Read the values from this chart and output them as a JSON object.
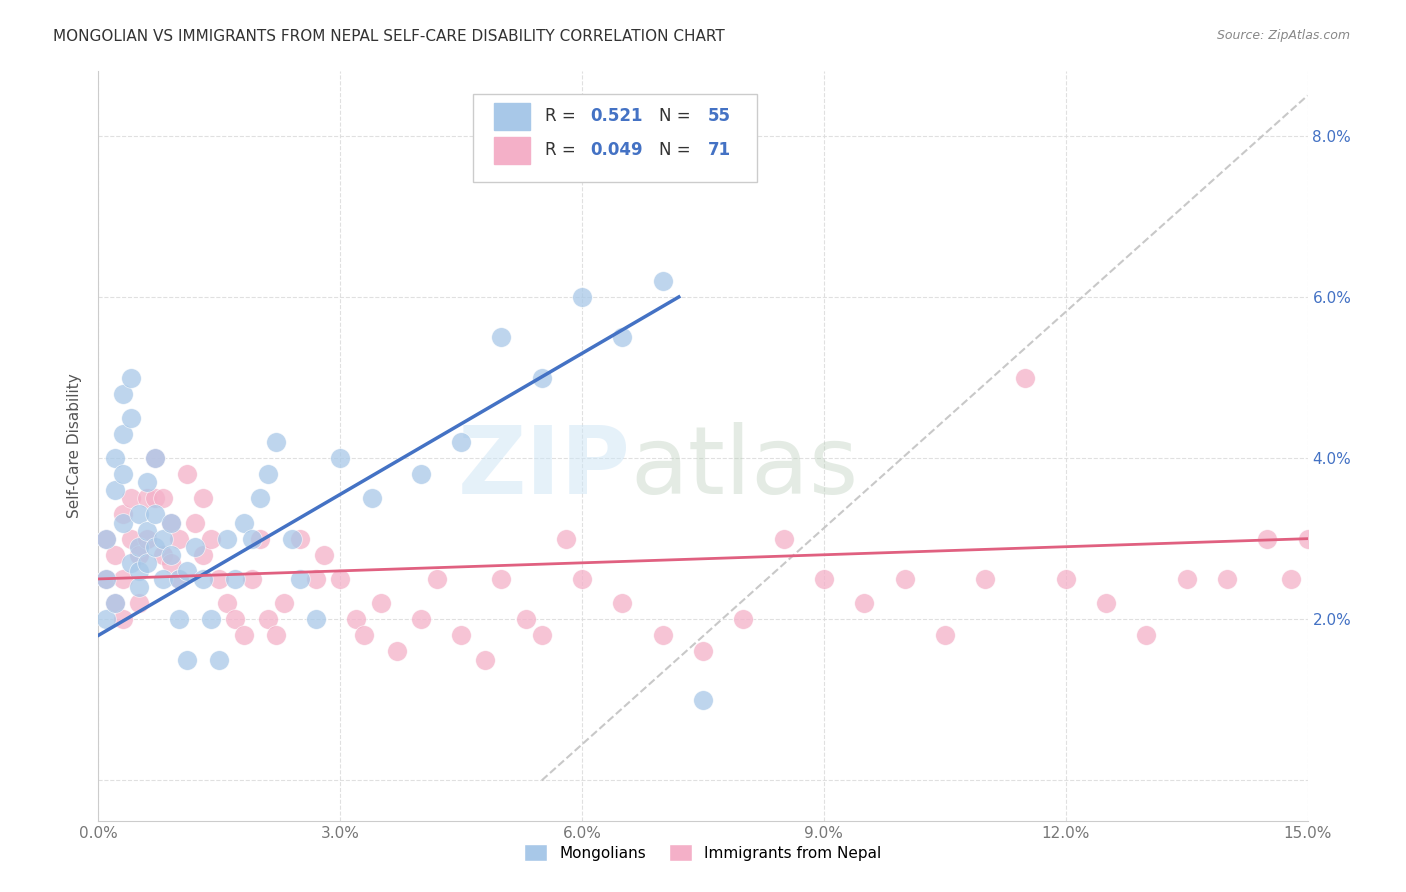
{
  "title": "MONGOLIAN VS IMMIGRANTS FROM NEPAL SELF-CARE DISABILITY CORRELATION CHART",
  "source": "Source: ZipAtlas.com",
  "ylabel": "Self-Care Disability",
  "xlim": [
    0.0,
    0.15
  ],
  "ylim": [
    -0.005,
    0.088
  ],
  "plot_ylim": [
    0.0,
    0.088
  ],
  "xticks": [
    0.0,
    0.03,
    0.06,
    0.09,
    0.12,
    0.15
  ],
  "yticks": [
    0.0,
    0.02,
    0.04,
    0.06,
    0.08
  ],
  "mongolian_R": 0.521,
  "mongolian_N": 55,
  "nepal_R": 0.049,
  "nepal_N": 71,
  "mongolian_color": "#a8c8e8",
  "nepal_color": "#f4b0c8",
  "mongolian_line_color": "#4472c4",
  "nepal_line_color": "#e06080",
  "background_color": "#ffffff",
  "grid_color": "#dddddd",
  "mongolian_x": [
    0.001,
    0.001,
    0.001,
    0.002,
    0.002,
    0.002,
    0.003,
    0.003,
    0.003,
    0.003,
    0.004,
    0.004,
    0.004,
    0.005,
    0.005,
    0.005,
    0.005,
    0.006,
    0.006,
    0.006,
    0.007,
    0.007,
    0.007,
    0.008,
    0.008,
    0.009,
    0.009,
    0.01,
    0.01,
    0.011,
    0.011,
    0.012,
    0.013,
    0.014,
    0.015,
    0.016,
    0.017,
    0.018,
    0.019,
    0.02,
    0.021,
    0.022,
    0.024,
    0.025,
    0.027,
    0.03,
    0.034,
    0.04,
    0.045,
    0.05,
    0.055,
    0.06,
    0.065,
    0.07,
    0.075
  ],
  "mongolian_y": [
    0.03,
    0.025,
    0.02,
    0.04,
    0.036,
    0.022,
    0.043,
    0.038,
    0.032,
    0.048,
    0.05,
    0.045,
    0.027,
    0.033,
    0.029,
    0.026,
    0.024,
    0.037,
    0.031,
    0.027,
    0.04,
    0.033,
    0.029,
    0.025,
    0.03,
    0.028,
    0.032,
    0.025,
    0.02,
    0.026,
    0.015,
    0.029,
    0.025,
    0.02,
    0.015,
    0.03,
    0.025,
    0.032,
    0.03,
    0.035,
    0.038,
    0.042,
    0.03,
    0.025,
    0.02,
    0.04,
    0.035,
    0.038,
    0.042,
    0.055,
    0.05,
    0.06,
    0.055,
    0.062,
    0.01
  ],
  "nepal_x": [
    0.001,
    0.001,
    0.002,
    0.002,
    0.003,
    0.003,
    0.003,
    0.004,
    0.004,
    0.005,
    0.005,
    0.006,
    0.006,
    0.007,
    0.007,
    0.008,
    0.008,
    0.009,
    0.009,
    0.01,
    0.01,
    0.011,
    0.012,
    0.013,
    0.013,
    0.014,
    0.015,
    0.016,
    0.017,
    0.018,
    0.019,
    0.02,
    0.021,
    0.022,
    0.023,
    0.025,
    0.027,
    0.028,
    0.03,
    0.032,
    0.033,
    0.035,
    0.037,
    0.04,
    0.042,
    0.045,
    0.048,
    0.05,
    0.053,
    0.055,
    0.058,
    0.06,
    0.065,
    0.07,
    0.075,
    0.08,
    0.085,
    0.09,
    0.095,
    0.1,
    0.105,
    0.11,
    0.115,
    0.12,
    0.125,
    0.13,
    0.135,
    0.14,
    0.145,
    0.148,
    0.15
  ],
  "nepal_y": [
    0.03,
    0.025,
    0.028,
    0.022,
    0.033,
    0.025,
    0.02,
    0.035,
    0.03,
    0.028,
    0.022,
    0.035,
    0.03,
    0.04,
    0.035,
    0.035,
    0.028,
    0.032,
    0.027,
    0.03,
    0.025,
    0.038,
    0.032,
    0.028,
    0.035,
    0.03,
    0.025,
    0.022,
    0.02,
    0.018,
    0.025,
    0.03,
    0.02,
    0.018,
    0.022,
    0.03,
    0.025,
    0.028,
    0.025,
    0.02,
    0.018,
    0.022,
    0.016,
    0.02,
    0.025,
    0.018,
    0.015,
    0.025,
    0.02,
    0.018,
    0.03,
    0.025,
    0.022,
    0.018,
    0.016,
    0.02,
    0.03,
    0.025,
    0.022,
    0.025,
    0.018,
    0.025,
    0.05,
    0.025,
    0.022,
    0.018,
    0.025,
    0.025,
    0.03,
    0.025,
    0.03
  ],
  "mongo_line_x": [
    0.0,
    0.072
  ],
  "mongo_line_y": [
    0.018,
    0.06
  ],
  "nepal_line_x": [
    0.0,
    0.15
  ],
  "nepal_line_y": [
    0.025,
    0.03
  ],
  "diag_line_x": [
    0.055,
    0.15
  ],
  "diag_line_y": [
    0.0,
    0.085
  ]
}
